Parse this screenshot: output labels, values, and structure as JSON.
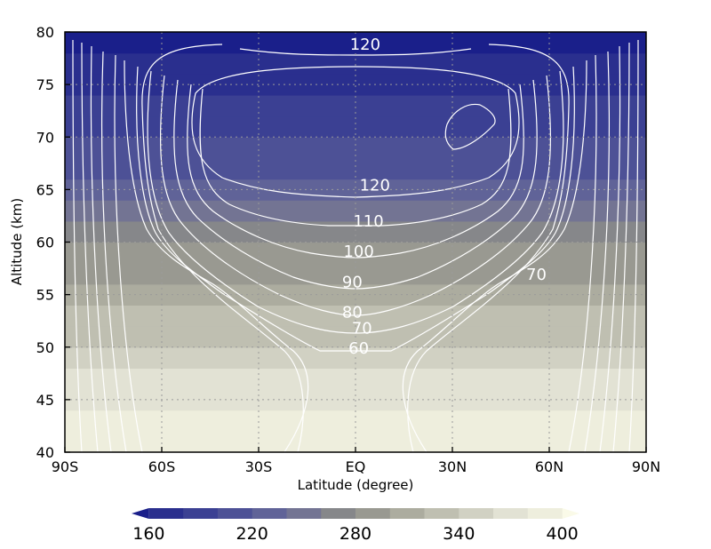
{
  "chart_data": {
    "type": "contour",
    "title": "",
    "xlabel": "Latitude (degree)",
    "ylabel": "Altitude (km)",
    "xlim": [
      -90,
      90
    ],
    "ylim": [
      40,
      80
    ],
    "x_ticks": [
      {
        "value": -90,
        "label": "90S"
      },
      {
        "value": -60,
        "label": "60S"
      },
      {
        "value": -30,
        "label": "30S"
      },
      {
        "value": 0,
        "label": "EQ"
      },
      {
        "value": 30,
        "label": "30N"
      },
      {
        "value": 60,
        "label": "60N"
      },
      {
        "value": 90,
        "label": "90N"
      }
    ],
    "y_ticks": [
      {
        "value": 40,
        "label": "40"
      },
      {
        "value": 45,
        "label": "45"
      },
      {
        "value": 50,
        "label": "50"
      },
      {
        "value": 55,
        "label": "55"
      },
      {
        "value": 60,
        "label": "60"
      },
      {
        "value": 65,
        "label": "65"
      },
      {
        "value": 70,
        "label": "70"
      },
      {
        "value": 75,
        "label": "75"
      },
      {
        "value": 80,
        "label": "80"
      }
    ],
    "grid": true,
    "grid_style": "dotted",
    "shaded_field": {
      "levels": [
        160,
        180,
        200,
        220,
        240,
        260,
        280,
        300,
        320,
        340,
        360,
        380,
        400
      ],
      "colors": [
        "#1a1f8a",
        "#2a2f8e",
        "#3b4093",
        "#4d5196",
        "#606398",
        "#737493",
        "#86878a",
        "#999991",
        "#acac9f",
        "#bfbfb1",
        "#d1d1c3",
        "#e2e2d4",
        "#eeeedd",
        "#fafae8"
      ],
      "profile": [
        {
          "altitude": 40,
          "value": 395
        },
        {
          "altitude": 42,
          "value": 392
        },
        {
          "altitude": 44,
          "value": 385
        },
        {
          "altitude": 46,
          "value": 372
        },
        {
          "altitude": 48,
          "value": 358
        },
        {
          "altitude": 50,
          "value": 345
        },
        {
          "altitude": 52,
          "value": 332
        },
        {
          "altitude": 54,
          "value": 318
        },
        {
          "altitude": 56,
          "value": 303
        },
        {
          "altitude": 58,
          "value": 288
        },
        {
          "altitude": 60,
          "value": 272
        },
        {
          "altitude": 62,
          "value": 256
        },
        {
          "altitude": 64,
          "value": 240
        },
        {
          "altitude": 66,
          "value": 226
        },
        {
          "altitude": 68,
          "value": 213
        },
        {
          "altitude": 70,
          "value": 201
        },
        {
          "altitude": 72,
          "value": 190
        },
        {
          "altitude": 74,
          "value": 180
        },
        {
          "altitude": 76,
          "value": 170
        },
        {
          "altitude": 78,
          "value": 162
        },
        {
          "altitude": 80,
          "value": 155
        }
      ]
    },
    "colorbar": {
      "tick_labels": [
        "160",
        "220",
        "280",
        "340",
        "400"
      ],
      "tick_values": [
        160,
        220,
        280,
        340,
        400
      ],
      "extend": "both"
    },
    "contour_labels": [
      {
        "text": "120",
        "lat": 3,
        "alt": 78.8
      },
      {
        "text": "120",
        "lat": 6,
        "alt": 65.4
      },
      {
        "text": "110",
        "lat": 4,
        "alt": 62.0
      },
      {
        "text": "100",
        "lat": 1,
        "alt": 59.1
      },
      {
        "text": "90",
        "lat": -1,
        "alt": 56.2
      },
      {
        "text": "80",
        "lat": -1,
        "alt": 53.3
      },
      {
        "text": "70",
        "lat": 2,
        "alt": 51.8
      },
      {
        "text": "60",
        "lat": 1,
        "alt": 49.9
      },
      {
        "text": "70",
        "lat": 56,
        "alt": 56.9
      }
    ]
  }
}
